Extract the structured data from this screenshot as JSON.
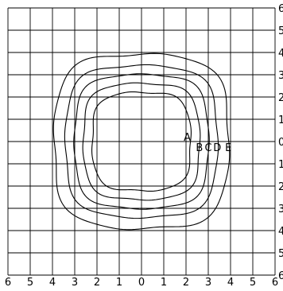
{
  "axes": {
    "x_ticks": [
      "6",
      "5",
      "4",
      "3",
      "2",
      "1",
      "0",
      "1",
      "2",
      "3",
      "4",
      "5",
      "6"
    ],
    "y_ticks": [
      "6",
      "5",
      "4",
      "3",
      "2",
      "1",
      "0",
      "1",
      "2",
      "3",
      "4",
      "5",
      "6"
    ]
  },
  "contours": [
    {
      "label": "A",
      "radius": 2.2
    },
    {
      "label": "B",
      "radius": 2.6
    },
    {
      "label": "C",
      "radius": 3.0
    },
    {
      "label": "D",
      "radius": 3.4
    },
    {
      "label": "E",
      "radius": 3.9
    }
  ]
}
